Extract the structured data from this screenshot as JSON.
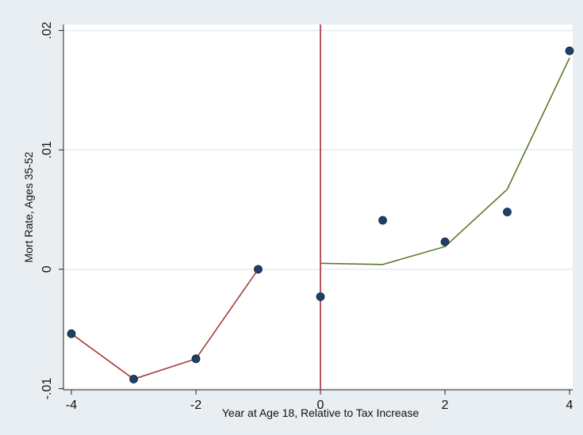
{
  "chart_data": {
    "type": "scatter",
    "xlabel": "Year at Age 18, Relative to Tax Increase",
    "ylabel": "Mort Rate, Ages 35-52",
    "xlim": [
      -4,
      4
    ],
    "ylim": [
      -0.0101,
      0.0205
    ],
    "x_ticks": [
      -4,
      -2,
      0,
      2,
      4
    ],
    "x_tick_labels": [
      "-4",
      "-2",
      "0",
      "2",
      "4"
    ],
    "y_ticks": [
      -0.01,
      0,
      0.01,
      0.02
    ],
    "y_tick_labels": [
      "-.01",
      "0",
      ".01",
      ".02"
    ],
    "grid": "horizontal",
    "vertical_reference_line": {
      "x": 0,
      "color": "#a52a3a"
    },
    "colors": {
      "background": "#e9eef2",
      "plot_area": "#ffffff",
      "gridline": "#e6ecf0",
      "marker": "#1f3f66",
      "pre_fit_line": "#a83a3a",
      "post_fit_line": "#5a7a2a",
      "reference_line": "#a52a3a"
    },
    "series": [
      {
        "kind": "scatter",
        "x": [
          -4,
          -3,
          -2,
          -1,
          0,
          1,
          2,
          3,
          4
        ],
        "y": [
          -0.0054,
          -0.0092,
          -0.0075,
          0.0,
          -0.0023,
          0.0041,
          0.0023,
          0.0048,
          0.0183
        ]
      },
      {
        "kind": "line",
        "color_key": "pre_fit_line",
        "x": [
          -4,
          -3,
          -2,
          -1
        ],
        "y": [
          -0.0054,
          -0.0092,
          -0.0075,
          0.0
        ]
      },
      {
        "kind": "line",
        "color_key": "post_fit_line",
        "x": [
          0,
          1,
          2,
          3,
          4
        ],
        "y": [
          0.0005,
          0.0004,
          0.0019,
          0.0067,
          0.0177
        ]
      }
    ]
  }
}
